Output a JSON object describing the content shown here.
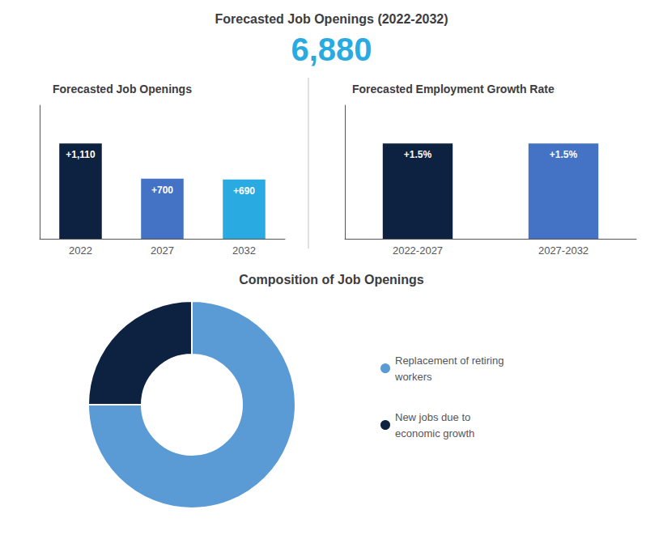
{
  "title": "Forecasted Job Openings (2022-2032)",
  "annotations": [
    {
      "text": "6,880",
      "color": "#29ABE2"
    }
  ],
  "chart_data": [
    {
      "type": "bar",
      "title": "Forecasted Job Openings",
      "categories": [
        "2022",
        "2027",
        "2032"
      ],
      "values": [
        1110,
        700,
        690
      ],
      "value_labels": [
        "+1,110",
        "+700",
        "+690"
      ],
      "colors": [
        "#0D2240",
        "#4472C4",
        "#29ABE2"
      ],
      "data_labels": true,
      "ylim": [
        0,
        1554
      ],
      "tick_labels": "x",
      "grid": false
    },
    {
      "type": "bar",
      "title": "Forecasted Employment Growth Rate",
      "categories": [
        "2022-2027",
        "2027-2032"
      ],
      "values": [
        1.5,
        1.5
      ],
      "value_labels": [
        "+1.5%",
        "+1.5%"
      ],
      "colors": [
        "#0D2240",
        "#4472C4"
      ],
      "data_labels": true,
      "ylim": [
        0,
        2.1
      ],
      "tick_labels": "x",
      "grid": false
    },
    {
      "type": "pie",
      "title": "Composition of Job Openings",
      "categories": [
        "Replacement of retiring\nworkers",
        "New jobs due to\neconomic growth"
      ],
      "values": [
        75,
        25
      ],
      "colors": [
        "#5B9BD5",
        "#0D2240"
      ],
      "legend": "right"
    }
  ]
}
